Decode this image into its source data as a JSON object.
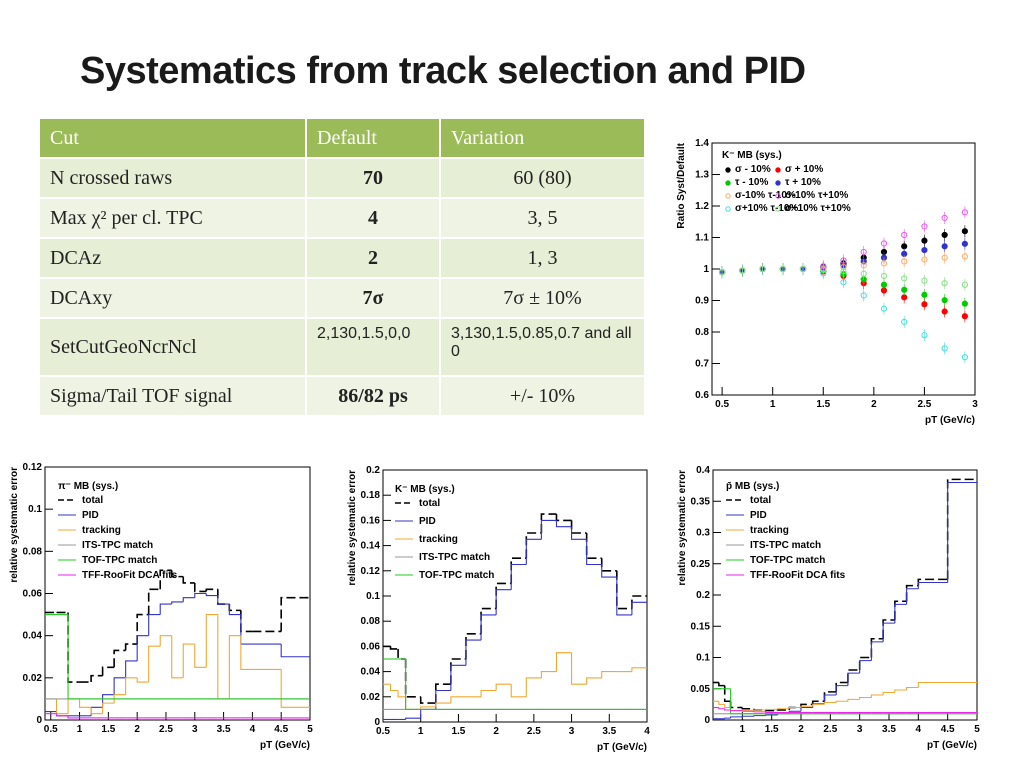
{
  "header": {
    "title": "Systematics from track selection and PID"
  },
  "table": {
    "header": [
      "Cut",
      "Default",
      "Variation"
    ],
    "rows": [
      [
        "N crossed raws",
        "70",
        "60 (80)"
      ],
      [
        "Max χ² per cl. TPC",
        "4",
        "3, 5"
      ],
      [
        "DCAz",
        "2",
        "1, 3"
      ],
      [
        "DCAxy",
        "7σ",
        "7σ ± 10%"
      ],
      [
        "SetCutGeoNcrNcl",
        "2,130,1.5,0,0",
        "3,130,1.5,0.85,0.7 and all 0"
      ],
      [
        "Sigma/Tail TOF signal",
        "86/82  ps",
        "+/- 10%"
      ]
    ]
  },
  "chart_data": [
    {
      "type": "scatter",
      "legend_title": "K⁻ MB (sys.)",
      "y_label": "Ratio Syst/Default",
      "x_label": "pT (GeV/c)",
      "x": [
        0.5,
        0.7,
        0.9,
        1.1,
        1.3,
        1.5,
        1.7,
        1.9,
        2.1,
        2.3,
        2.5,
        2.7,
        2.9
      ],
      "xlim": [
        0.4,
        3
      ],
      "xticks": [
        0.5,
        1,
        1.5,
        2,
        2.5,
        3
      ],
      "ylim": [
        0.6,
        1.4
      ],
      "yticks": [
        0.6,
        0.7,
        0.8,
        0.9,
        1,
        1.1,
        1.2,
        1.3,
        1.4
      ],
      "series": [
        {
          "name": "σ - 10%",
          "color": "#000000",
          "open": false,
          "values": [
            0.99,
            0.995,
            1,
            1,
            1,
            1.006,
            1.018,
            1.036,
            1.054,
            1.072,
            1.09,
            1.108,
            1.12
          ]
        },
        {
          "name": "σ + 10%",
          "color": "#ff0000",
          "open": false,
          "values": [
            0.99,
            0.995,
            1,
            1,
            1,
            0.992,
            0.978,
            0.955,
            0.932,
            0.91,
            0.888,
            0.865,
            0.85
          ]
        },
        {
          "name": "τ - 10%",
          "color": "#00cc00",
          "open": false,
          "values": [
            0.99,
            0.995,
            1,
            1,
            1,
            0.995,
            0.984,
            0.967,
            0.95,
            0.934,
            0.918,
            0.901,
            0.89
          ]
        },
        {
          "name": "τ + 10%",
          "color": "#3333cc",
          "open": false,
          "values": [
            0.99,
            0.995,
            1,
            1,
            1,
            1.004,
            1.012,
            1.024,
            1.036,
            1.048,
            1.06,
            1.072,
            1.08
          ]
        },
        {
          "name": "σ-10% τ-10%",
          "color": "#ffaa66",
          "open": true,
          "values": [
            0.99,
            0.995,
            1,
            1,
            1,
            1.002,
            1.006,
            1.012,
            1.018,
            1.024,
            1.03,
            1.036,
            1.04
          ]
        },
        {
          "name": "σ-10% τ+10%",
          "color": "#ee55ee",
          "open": true,
          "values": [
            0.99,
            0.995,
            1,
            1,
            1,
            1.009,
            1.027,
            1.054,
            1.081,
            1.108,
            1.135,
            1.162,
            1.18
          ]
        },
        {
          "name": "σ+10% τ-10%",
          "color": "#44dddd",
          "open": true,
          "values": [
            0.99,
            0.995,
            1,
            1,
            1,
            0.986,
            0.958,
            0.916,
            0.874,
            0.832,
            0.79,
            0.748,
            0.72
          ]
        },
        {
          "name": "σ+10% τ+10%",
          "color": "#88dd88",
          "open": true,
          "values": [
            0.99,
            0.995,
            1,
            1,
            1,
            0.998,
            0.993,
            0.985,
            0.978,
            0.97,
            0.963,
            0.955,
            0.95
          ]
        }
      ]
    },
    {
      "type": "histogram",
      "legend_title": "π⁻ MB (sys.)",
      "y_label": "relative systematic error",
      "x_label": "pT (GeV/c)",
      "bins": [
        0.4,
        0.6,
        0.8,
        1.0,
        1.2,
        1.4,
        1.6,
        1.8,
        2.0,
        2.2,
        2.4,
        2.6,
        2.8,
        3.0,
        3.2,
        3.4,
        3.6,
        3.8,
        4.0,
        4.5,
        5
      ],
      "xlim": [
        0.4,
        5
      ],
      "xticks": [
        0.5,
        1,
        1.5,
        2,
        2.5,
        3,
        3.5,
        4,
        4.5,
        5
      ],
      "ylim": [
        0,
        0.12
      ],
      "yticks": [
        0,
        0.02,
        0.04,
        0.06,
        0.08,
        0.1,
        0.12
      ],
      "series": [
        {
          "name": "total",
          "color": "#000000",
          "dash": true,
          "values": [
            0.051,
            0.051,
            0.018,
            0.018,
            0.021,
            0.025,
            0.033,
            0.036,
            0.05,
            0.062,
            0.071,
            0.068,
            0.065,
            0.061,
            0.062,
            0.055,
            0.052,
            0.042,
            0.042,
            0.058
          ]
        },
        {
          "name": "PID",
          "color": "#3333cc",
          "dash": false,
          "values": [
            0.004,
            0.002,
            0.002,
            0.002,
            0.006,
            0.012,
            0.02,
            0.028,
            0.04,
            0.05,
            0.055,
            0.056,
            0.058,
            0.06,
            0.059,
            0.055,
            0.05,
            0.036,
            0.036,
            0.03
          ]
        },
        {
          "name": "tracking",
          "color": "#f0a830",
          "dash": false,
          "values": [
            0.01,
            0.003,
            0.01,
            0.006,
            0.003,
            0.008,
            0.012,
            0.02,
            0.018,
            0.035,
            0.04,
            0.02,
            0.036,
            0.025,
            0.05,
            0.01,
            0.04,
            0.024,
            0.024,
            0.006
          ]
        },
        {
          "name": "ITS-TPC match",
          "color": "#999999",
          "dash": false,
          "values": [
            0.01,
            0.01,
            0.01,
            0.01,
            0.01,
            0.01,
            0.01,
            0.01,
            0.01,
            0.01,
            0.01,
            0.01,
            0.01,
            0.01,
            0.01,
            0.01,
            0.01,
            0.01,
            0.01,
            0.01
          ]
        },
        {
          "name": "TOF-TPC match",
          "color": "#22cc22",
          "dash": false,
          "values": [
            0.05,
            0.05,
            0.01,
            0.01,
            0.01,
            0.01,
            0.01,
            0.01,
            0.01,
            0.01,
            0.01,
            0.01,
            0.01,
            0.01,
            0.01,
            0.01,
            0.01,
            0.01,
            0.01,
            0.01
          ]
        },
        {
          "name": "TFF-RooFit DCA fits",
          "color": "#ee22ee",
          "dash": false,
          "values": [
            0.003,
            0.002,
            0.001,
            0.001,
            0.001,
            0.001,
            0.001,
            0.001,
            0.001,
            0.001,
            0.001,
            0.001,
            0.001,
            0.001,
            0.001,
            0.001,
            0.001,
            0.001,
            0.001,
            0.001
          ]
        }
      ]
    },
    {
      "type": "histogram",
      "legend_title": "K⁻ MB (sys.)",
      "y_label": "relative systematic error",
      "x_label": "pT (GeV/c)",
      "bins": [
        0.5,
        0.6,
        0.7,
        0.8,
        1.0,
        1.2,
        1.4,
        1.6,
        1.8,
        2.0,
        2.2,
        2.4,
        2.6,
        2.8,
        3.0,
        3.2,
        3.4,
        3.6,
        3.8,
        4.0
      ],
      "xlim": [
        0.5,
        4
      ],
      "xticks": [
        0.5,
        1,
        1.5,
        2,
        2.5,
        3,
        3.5,
        4
      ],
      "ylim": [
        0,
        0.2
      ],
      "yticks": [
        0,
        0.02,
        0.04,
        0.06,
        0.08,
        0.1,
        0.12,
        0.14,
        0.16,
        0.18,
        0.2
      ],
      "series": [
        {
          "name": "total",
          "color": "#000000",
          "dash": true,
          "values": [
            0.06,
            0.058,
            0.05,
            0.02,
            0.015,
            0.03,
            0.05,
            0.07,
            0.09,
            0.11,
            0.13,
            0.15,
            0.165,
            0.16,
            0.15,
            0.13,
            0.12,
            0.09,
            0.1
          ]
        },
        {
          "name": "PID",
          "color": "#3333cc",
          "dash": false,
          "values": [
            0.002,
            0.002,
            0.002,
            0.003,
            0.01,
            0.025,
            0.045,
            0.065,
            0.085,
            0.105,
            0.125,
            0.145,
            0.16,
            0.155,
            0.145,
            0.125,
            0.115,
            0.085,
            0.095
          ]
        },
        {
          "name": "tracking",
          "color": "#f0a830",
          "dash": false,
          "values": [
            0.03,
            0.025,
            0.02,
            0.01,
            0.012,
            0.015,
            0.02,
            0.02,
            0.025,
            0.03,
            0.02,
            0.035,
            0.04,
            0.055,
            0.03,
            0.035,
            0.04,
            0.04,
            0.043
          ]
        },
        {
          "name": "ITS-TPC match",
          "color": "#999999",
          "dash": false,
          "values": [
            0.01,
            0.01,
            0.01,
            0.01,
            0.01,
            0.01,
            0.01,
            0.01,
            0.01,
            0.01,
            0.01,
            0.01,
            0.01,
            0.01,
            0.01,
            0.01,
            0.01,
            0.01,
            0.01
          ]
        },
        {
          "name": "TOF-TPC match",
          "color": "#22cc22",
          "dash": false,
          "values": [
            0.05,
            0.05,
            0.05,
            0.01,
            0.01,
            0.01,
            0.01,
            0.01,
            0.01,
            0.01,
            0.01,
            0.01,
            0.01,
            0.01,
            0.01,
            0.01,
            0.01,
            0.01,
            0.01
          ]
        }
      ]
    },
    {
      "type": "histogram",
      "legend_title": "p̄ MB (sys.)",
      "y_label": "relative systematic error",
      "x_label": "pT (GeV/c)",
      "bins": [
        0.5,
        0.6,
        0.7,
        0.8,
        1.0,
        1.2,
        1.4,
        1.6,
        1.8,
        2.0,
        2.2,
        2.4,
        2.6,
        2.8,
        3.0,
        3.2,
        3.4,
        3.6,
        3.8,
        4.0,
        4.5,
        5
      ],
      "xlim": [
        0.5,
        5
      ],
      "xticks": [
        1,
        1.5,
        2,
        2.5,
        3,
        3.5,
        4,
        4.5,
        5
      ],
      "ylim": [
        0,
        0.4
      ],
      "yticks": [
        0,
        0.05,
        0.1,
        0.15,
        0.2,
        0.25,
        0.3,
        0.35,
        0.4
      ],
      "series": [
        {
          "name": "total",
          "color": "#000000",
          "dash": true,
          "values": [
            0.06,
            0.055,
            0.03,
            0.02,
            0.018,
            0.016,
            0.015,
            0.016,
            0.02,
            0.025,
            0.03,
            0.045,
            0.06,
            0.08,
            0.1,
            0.13,
            0.16,
            0.19,
            0.215,
            0.225,
            0.385
          ]
        },
        {
          "name": "PID",
          "color": "#3333cc",
          "dash": false,
          "values": [
            0.002,
            0.002,
            0.003,
            0.005,
            0.006,
            0.007,
            0.008,
            0.01,
            0.014,
            0.02,
            0.026,
            0.04,
            0.055,
            0.075,
            0.095,
            0.125,
            0.155,
            0.185,
            0.21,
            0.22,
            0.38
          ]
        },
        {
          "name": "tracking",
          "color": "#f0a830",
          "dash": false,
          "values": [
            0.03,
            0.025,
            0.02,
            0.015,
            0.015,
            0.016,
            0.017,
            0.018,
            0.02,
            0.022,
            0.025,
            0.028,
            0.03,
            0.033,
            0.036,
            0.04,
            0.044,
            0.048,
            0.052,
            0.06,
            0.06
          ]
        },
        {
          "name": "ITS-TPC match",
          "color": "#999999",
          "dash": false,
          "values": [
            0.01,
            0.01,
            0.01,
            0.01,
            0.01,
            0.01,
            0.01,
            0.01,
            0.01,
            0.01,
            0.01,
            0.01,
            0.01,
            0.01,
            0.01,
            0.01,
            0.01,
            0.01,
            0.01,
            0.01,
            0.01
          ]
        },
        {
          "name": "TOF-TPC match",
          "color": "#22cc22",
          "dash": false,
          "values": [
            0.05,
            0.05,
            0.05,
            0.01,
            0.01,
            0.01,
            0.01,
            0.01,
            0.01,
            0.01,
            0.01,
            0.01,
            0.01,
            0.01,
            0.01,
            0.01,
            0.01,
            0.01,
            0.01,
            0.01,
            0.01
          ]
        },
        {
          "name": "TFF-RooFit DCA fits",
          "color": "#ee22ee",
          "dash": false,
          "values": [
            0.02,
            0.018,
            0.016,
            0.015,
            0.014,
            0.013,
            0.012,
            0.012,
            0.012,
            0.012,
            0.012,
            0.012,
            0.012,
            0.012,
            0.012,
            0.012,
            0.012,
            0.012,
            0.012,
            0.012,
            0.012
          ]
        }
      ]
    }
  ]
}
